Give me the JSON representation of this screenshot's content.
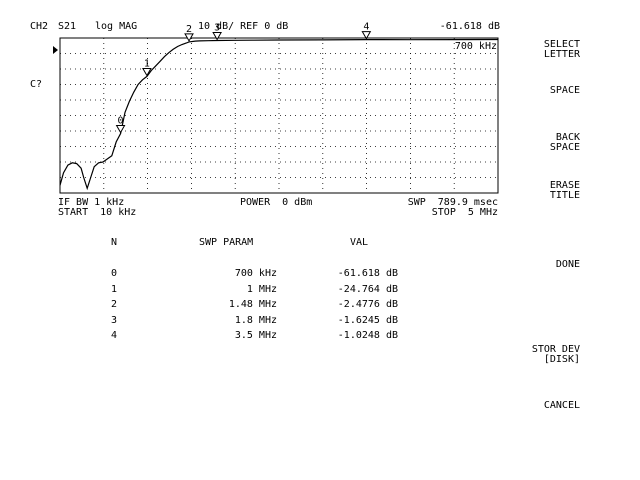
{
  "header": {
    "channel": "CH2",
    "param": "S21",
    "format": "log MAG",
    "scale": "10 dB/ REF 0 dB",
    "marker_value": "-61.618 dB",
    "marker_freq": "700 kHz",
    "status": "C?"
  },
  "footer": {
    "ifbw": "IF BW 1 kHz",
    "start": "START  10 kHz",
    "power": "POWER  0 dBm",
    "swp": "SWP  789.9 msec",
    "stop": "STOP  5 MHz"
  },
  "softkeys": [
    {
      "label": "SELECT\nLETTER"
    },
    {
      "label": "SPACE"
    },
    {
      "label": "BACK\nSPACE"
    },
    {
      "label": "ERASE\nTITLE"
    },
    {
      "label": "DONE"
    },
    {
      "label": "STOR DEV\n[DISK]"
    },
    {
      "label": "CANCEL"
    }
  ],
  "table": {
    "headers": {
      "n": "N",
      "swp": "SWP PARAM",
      "val": "VAL"
    },
    "rows": [
      {
        "n": "0",
        "swp": "700 kHz",
        "val": "-61.618 dB"
      },
      {
        "n": "1",
        "swp": "1 MHz",
        "val": "-24.764 dB"
      },
      {
        "n": "2",
        "swp": "1.48 MHz",
        "val": "-2.4776 dB"
      },
      {
        "n": "3",
        "swp": "1.8 MHz",
        "val": "-1.6245 dB"
      },
      {
        "n": "4",
        "swp": "3.5 MHz",
        "val": "-1.0248 dB"
      }
    ]
  },
  "markers": [
    {
      "label": "0",
      "freq_mhz": 0.7
    },
    {
      "label": "1",
      "freq_mhz": 1.0
    },
    {
      "label": "2",
      "freq_mhz": 1.48
    },
    {
      "label": "3",
      "freq_mhz": 1.8
    },
    {
      "label": "4",
      "freq_mhz": 3.5
    }
  ],
  "chart_data": {
    "type": "line",
    "x_range_mhz": [
      0.01,
      5
    ],
    "ylim_db": [
      -100,
      0
    ],
    "ref_db": 0,
    "db_per_div": 10,
    "grid": true,
    "series": [
      {
        "x_mhz": [
          0.01,
          0.05,
          0.1,
          0.15,
          0.2,
          0.25,
          0.28,
          0.32,
          0.36,
          0.4,
          0.45,
          0.5,
          0.55,
          0.6,
          0.65,
          0.7,
          0.75,
          0.8,
          0.85,
          0.9,
          0.95,
          1.0,
          1.05,
          1.1,
          1.15,
          1.2,
          1.25,
          1.3,
          1.35,
          1.4,
          1.45,
          1.48,
          1.55,
          1.6,
          1.7,
          1.8,
          2.0,
          2.2,
          2.5,
          3.0,
          3.5,
          4.0,
          4.5,
          5.0
        ],
        "y_db": [
          -95,
          -87,
          -82,
          -80.5,
          -81,
          -84,
          -90,
          -97,
          -90,
          -83,
          -80.5,
          -80,
          -78,
          -76,
          -67,
          -61.6,
          -48,
          -41,
          -35,
          -30,
          -27,
          -24.8,
          -21,
          -18,
          -15,
          -12,
          -9.5,
          -7.3,
          -5.5,
          -4.2,
          -3.2,
          -2.5,
          -2,
          -1.9,
          -1.75,
          -1.62,
          -1.5,
          -1.4,
          -1.3,
          -1.2,
          -1.02,
          -1.1,
          -1.05,
          -1.0
        ]
      }
    ]
  }
}
